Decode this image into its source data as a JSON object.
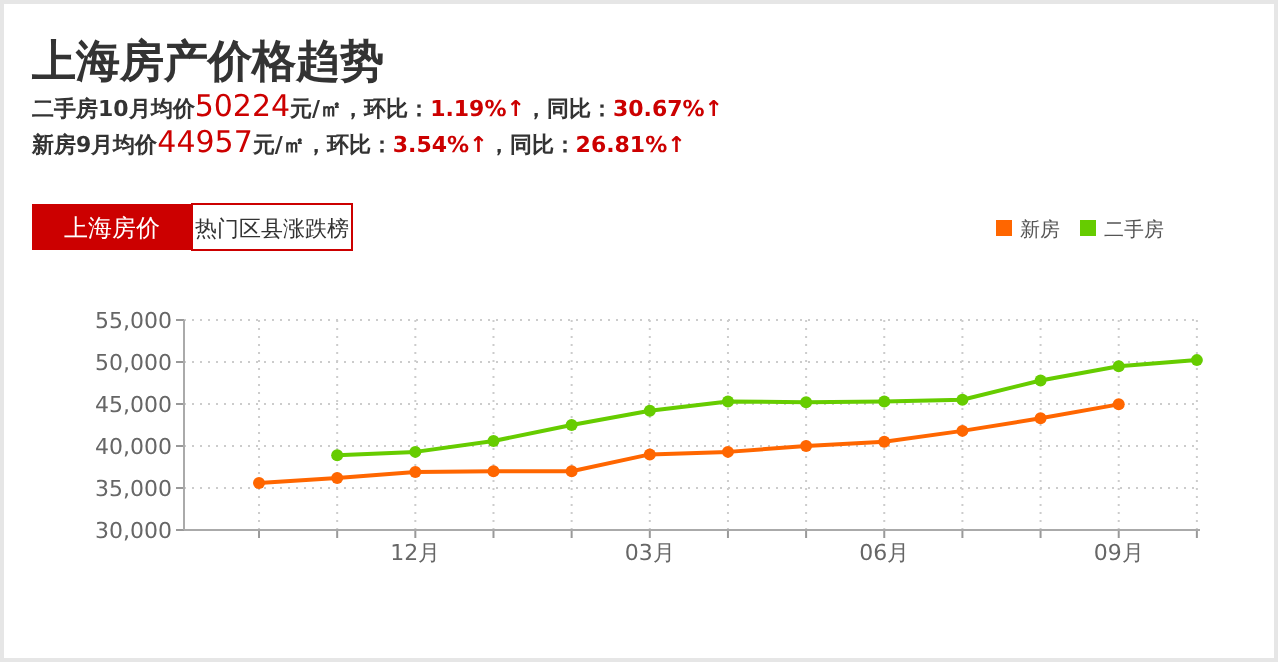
{
  "chart_data": {
    "type": "line",
    "title": "上海房产价格趋势",
    "annotations": [
      "二手房10月均价50224元/㎡，环比：1.19%↑，同比：30.67%↑",
      "新房9月均价44957元/㎡，环比：3.54%↑，同比：26.81%↑",
      "上海房价",
      "热门区县涨跌榜"
    ],
    "categories": [
      null,
      null,
      "12月",
      null,
      null,
      "03月",
      null,
      null,
      "06月",
      null,
      null,
      "09月",
      null
    ],
    "series": [
      {
        "name": "新房",
        "color": "#ff6600",
        "values": [
          35600,
          36200,
          36900,
          37000,
          37000,
          39000,
          39300,
          40000,
          40500,
          41800,
          43300,
          44957,
          null
        ]
      },
      {
        "name": "二手房",
        "color": "#66cc00",
        "values": [
          null,
          38900,
          39300,
          40600,
          42500,
          44200,
          45300,
          45200,
          45300,
          45500,
          47800,
          49500,
          50224
        ]
      }
    ],
    "ylim": [
      30000,
      55000
    ],
    "yticks": [
      {
        "value": 30000,
        "label": "30,000"
      },
      {
        "value": 35000,
        "label": "35,000"
      },
      {
        "value": 40000,
        "label": "40,000"
      },
      {
        "value": 45000,
        "label": "45,000"
      },
      {
        "value": 50000,
        "label": "50,000"
      },
      {
        "value": 55000,
        "label": "55,000"
      }
    ],
    "grid": true,
    "legend": "top right",
    "marker": "circle",
    "line_style": "solid"
  }
}
